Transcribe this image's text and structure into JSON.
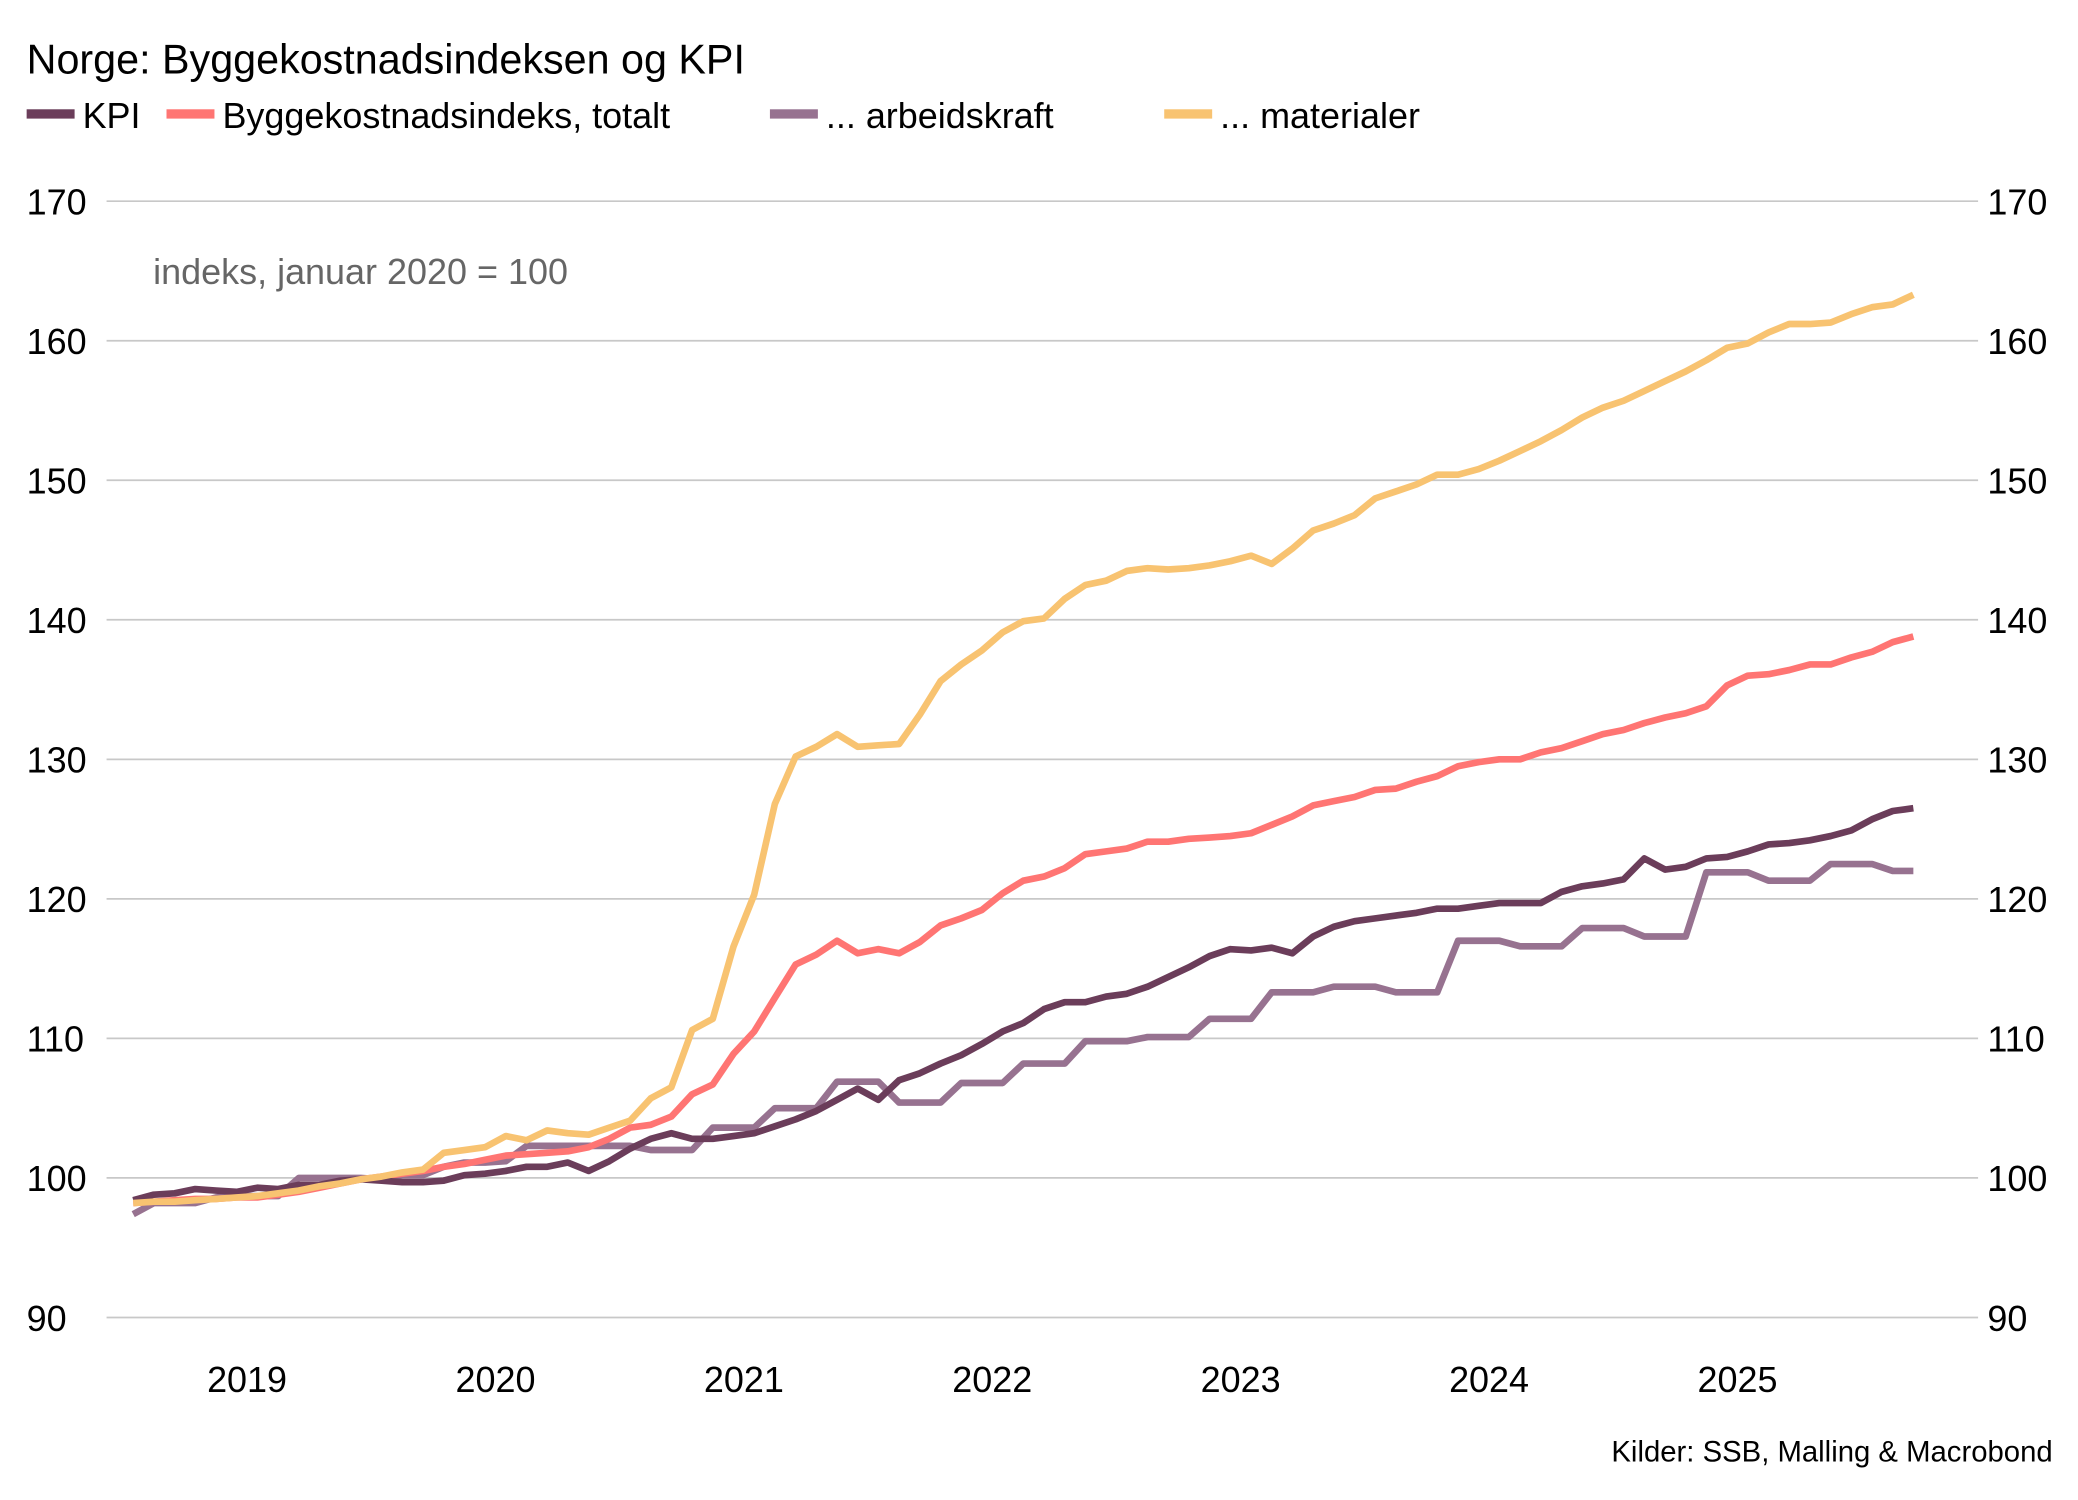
{
  "chart_data": {
    "type": "line",
    "title": "Norge: Byggekostnadsindeksen og KPI",
    "annotation": "indeks, januar 2020 = 100",
    "source": "Kilder: SSB, Malling & Macrobond",
    "legend_position": "top-left",
    "grid": true,
    "ylim": [
      90,
      170
    ],
    "yticks": [
      "90",
      "100",
      "110",
      "120",
      "130",
      "140",
      "150",
      "160",
      "170"
    ],
    "xticks": [
      "2019",
      "2020",
      "2021",
      "2022",
      "2023",
      "2024",
      "2025"
    ],
    "x": [
      "2019-01",
      "2019-02",
      "2019-03",
      "2019-04",
      "2019-05",
      "2019-06",
      "2019-07",
      "2019-08",
      "2019-09",
      "2019-10",
      "2019-11",
      "2019-12",
      "2020-01",
      "2020-02",
      "2020-03",
      "2020-04",
      "2020-05",
      "2020-06",
      "2020-07",
      "2020-08",
      "2020-09",
      "2020-10",
      "2020-11",
      "2020-12",
      "2021-01",
      "2021-02",
      "2021-03",
      "2021-04",
      "2021-05",
      "2021-06",
      "2021-07",
      "2021-08",
      "2021-09",
      "2021-10",
      "2021-11",
      "2021-12",
      "2022-01",
      "2022-02",
      "2022-03",
      "2022-04",
      "2022-05",
      "2022-06",
      "2022-07",
      "2022-08",
      "2022-09",
      "2022-10",
      "2022-11",
      "2022-12",
      "2023-01",
      "2023-02",
      "2023-03",
      "2023-04",
      "2023-05",
      "2023-06",
      "2023-07",
      "2023-08",
      "2023-09",
      "2023-10",
      "2023-11",
      "2023-12",
      "2024-01",
      "2024-02",
      "2024-03",
      "2024-04",
      "2024-05",
      "2024-06",
      "2024-07",
      "2024-08",
      "2024-09",
      "2024-10",
      "2024-11",
      "2024-12",
      "2025-01",
      "2025-02",
      "2025-03",
      "2025-04",
      "2025-05",
      "2025-06",
      "2025-07",
      "2025-08",
      "2025-09",
      "2025-10",
      "2025-11",
      "2025-12",
      "2026-01",
      "2026-02",
      "2026-03"
    ],
    "series": [
      {
        "name": "KPI",
        "color": "#6b3d5a",
        "values": [
          98.4,
          98.8,
          98.9,
          99.2,
          99.1,
          99.0,
          99.3,
          99.2,
          99.5,
          99.5,
          99.8,
          99.9,
          99.8,
          99.7,
          99.7,
          99.8,
          100.2,
          100.3,
          100.5,
          100.8,
          100.8,
          101.1,
          100.5,
          101.2,
          102.1,
          102.8,
          103.2,
          102.8,
          102.8,
          103.0,
          103.2,
          103.7,
          104.2,
          104.8,
          105.6,
          106.4,
          105.6,
          107.0,
          107.5,
          108.2,
          108.8,
          109.6,
          110.5,
          111.1,
          112.1,
          112.6,
          112.6,
          113.0,
          113.2,
          113.7,
          114.4,
          115.1,
          115.9,
          116.4,
          116.3,
          116.5,
          116.1,
          117.3,
          118.0,
          118.4,
          118.6,
          118.8,
          119.0,
          119.3,
          119.3,
          119.5,
          119.7,
          119.7,
          119.7,
          120.5,
          120.9,
          121.1,
          121.4,
          122.9,
          122.1,
          122.3,
          122.9,
          123.0,
          123.4,
          123.9,
          124.0,
          124.2,
          124.5,
          124.9,
          125.7,
          126.3,
          126.5
        ]
      },
      {
        "name": "Byggekostnadsindeks, totalt",
        "color": "#ff7573",
        "values": [
          98.2,
          98.3,
          98.4,
          98.5,
          98.5,
          98.6,
          98.6,
          98.8,
          99.0,
          99.3,
          99.6,
          99.9,
          100.1,
          100.3,
          100.5,
          100.8,
          101.0,
          101.3,
          101.6,
          101.7,
          101.8,
          101.9,
          102.2,
          102.8,
          103.6,
          103.8,
          104.4,
          106.0,
          106.7,
          108.9,
          110.5,
          112.9,
          115.3,
          116.0,
          117.0,
          116.1,
          116.4,
          116.1,
          116.9,
          118.1,
          118.6,
          119.2,
          120.4,
          121.3,
          121.6,
          122.2,
          123.2,
          123.4,
          123.6,
          124.1,
          124.1,
          124.3,
          124.4,
          124.5,
          124.7,
          125.3,
          125.9,
          126.7,
          127.0,
          127.3,
          127.8,
          127.9,
          128.4,
          128.8,
          129.5,
          129.8,
          130.0,
          130.0,
          130.5,
          130.8,
          131.3,
          131.8,
          132.1,
          132.6,
          133.0,
          133.3,
          133.8,
          135.3,
          136.0,
          136.1,
          136.4,
          136.8,
          136.8,
          137.3,
          137.7,
          138.4,
          138.8
        ]
      },
      {
        "name": "... arbeidskraft",
        "color": "#977290",
        "values": [
          97.4,
          98.2,
          98.2,
          98.2,
          98.6,
          98.7,
          98.7,
          98.7,
          100.0,
          100.0,
          100.0,
          100.0,
          99.9,
          100.2,
          100.2,
          100.8,
          101.1,
          101.1,
          101.2,
          102.3,
          102.3,
          102.3,
          102.3,
          102.3,
          102.3,
          102.0,
          102.0,
          102.0,
          103.6,
          103.6,
          103.6,
          105.0,
          105.0,
          105.0,
          106.9,
          106.9,
          106.9,
          105.4,
          105.4,
          105.4,
          106.8,
          106.8,
          106.8,
          108.2,
          108.2,
          108.2,
          109.8,
          109.8,
          109.8,
          110.1,
          110.1,
          110.1,
          111.4,
          111.4,
          111.4,
          113.3,
          113.3,
          113.3,
          113.7,
          113.7,
          113.7,
          113.3,
          113.3,
          113.3,
          117.0,
          117.0,
          117.0,
          116.6,
          116.6,
          116.6,
          117.9,
          117.9,
          117.9,
          117.3,
          117.3,
          117.3,
          121.9,
          121.9,
          121.9,
          121.3,
          121.3,
          121.3,
          122.5,
          122.5,
          122.5,
          122.0,
          122.0
        ]
      },
      {
        "name": "... materialer",
        "color": "#f8c371",
        "values": [
          98.2,
          98.3,
          98.3,
          98.4,
          98.5,
          98.6,
          98.7,
          98.9,
          99.1,
          99.4,
          99.6,
          99.9,
          100.1,
          100.4,
          100.6,
          101.8,
          102.0,
          102.2,
          103.0,
          102.7,
          103.4,
          103.2,
          103.1,
          103.6,
          104.1,
          105.7,
          106.5,
          110.6,
          111.4,
          116.6,
          120.3,
          126.8,
          130.2,
          130.9,
          131.8,
          130.9,
          131.0,
          131.1,
          133.2,
          135.6,
          136.8,
          137.8,
          139.1,
          139.9,
          140.1,
          141.5,
          142.5,
          142.8,
          143.5,
          143.7,
          143.6,
          143.7,
          143.9,
          144.2,
          144.6,
          144.0,
          145.1,
          146.4,
          146.9,
          147.5,
          148.7,
          149.2,
          149.7,
          150.4,
          150.4,
          150.8,
          151.4,
          152.1,
          152.8,
          153.6,
          154.5,
          155.2,
          155.7,
          156.4,
          157.1,
          157.8,
          158.6,
          159.5,
          159.8,
          160.6,
          161.2,
          161.2,
          161.3,
          161.9,
          162.4,
          162.6,
          163.3
        ]
      }
    ]
  }
}
